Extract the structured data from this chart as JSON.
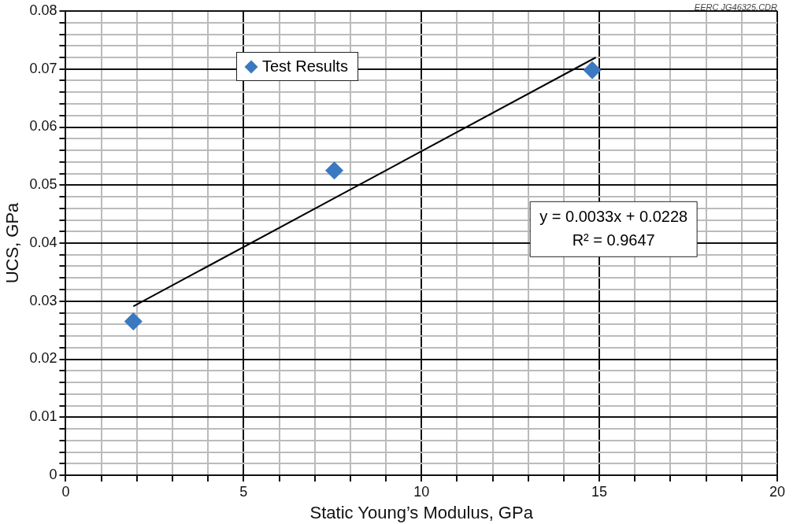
{
  "chart_data": {
    "type": "scatter",
    "xlabel": "Static Young’s Modulus, GPa",
    "ylabel": "UCS, GPa",
    "xlim": [
      0,
      20
    ],
    "xticks": [
      0,
      5,
      10,
      15,
      20
    ],
    "ylim": [
      0,
      0.08
    ],
    "yticks": [
      0,
      0.01,
      0.02,
      0.03,
      0.04,
      0.05,
      0.06,
      0.07,
      0.08
    ],
    "grid": true,
    "legend": "top left",
    "marker": "diamond",
    "series": [
      {
        "name": "Test Results",
        "color": "#3a78c0",
        "x": [
          1.9,
          7.55,
          14.8
        ],
        "values": [
          0.0265,
          0.0525,
          0.0698
        ]
      },
      {
        "type": "line",
        "color": "#000000",
        "x": [
          1.9,
          14.9
        ],
        "values": [
          0.0291,
          0.072
        ],
        "marker": "none"
      }
    ],
    "annotations": [
      "y = 0.0033x + 0.0228\nR² = 0.9647",
      "EERC JG46325.CDR"
    ]
  }
}
